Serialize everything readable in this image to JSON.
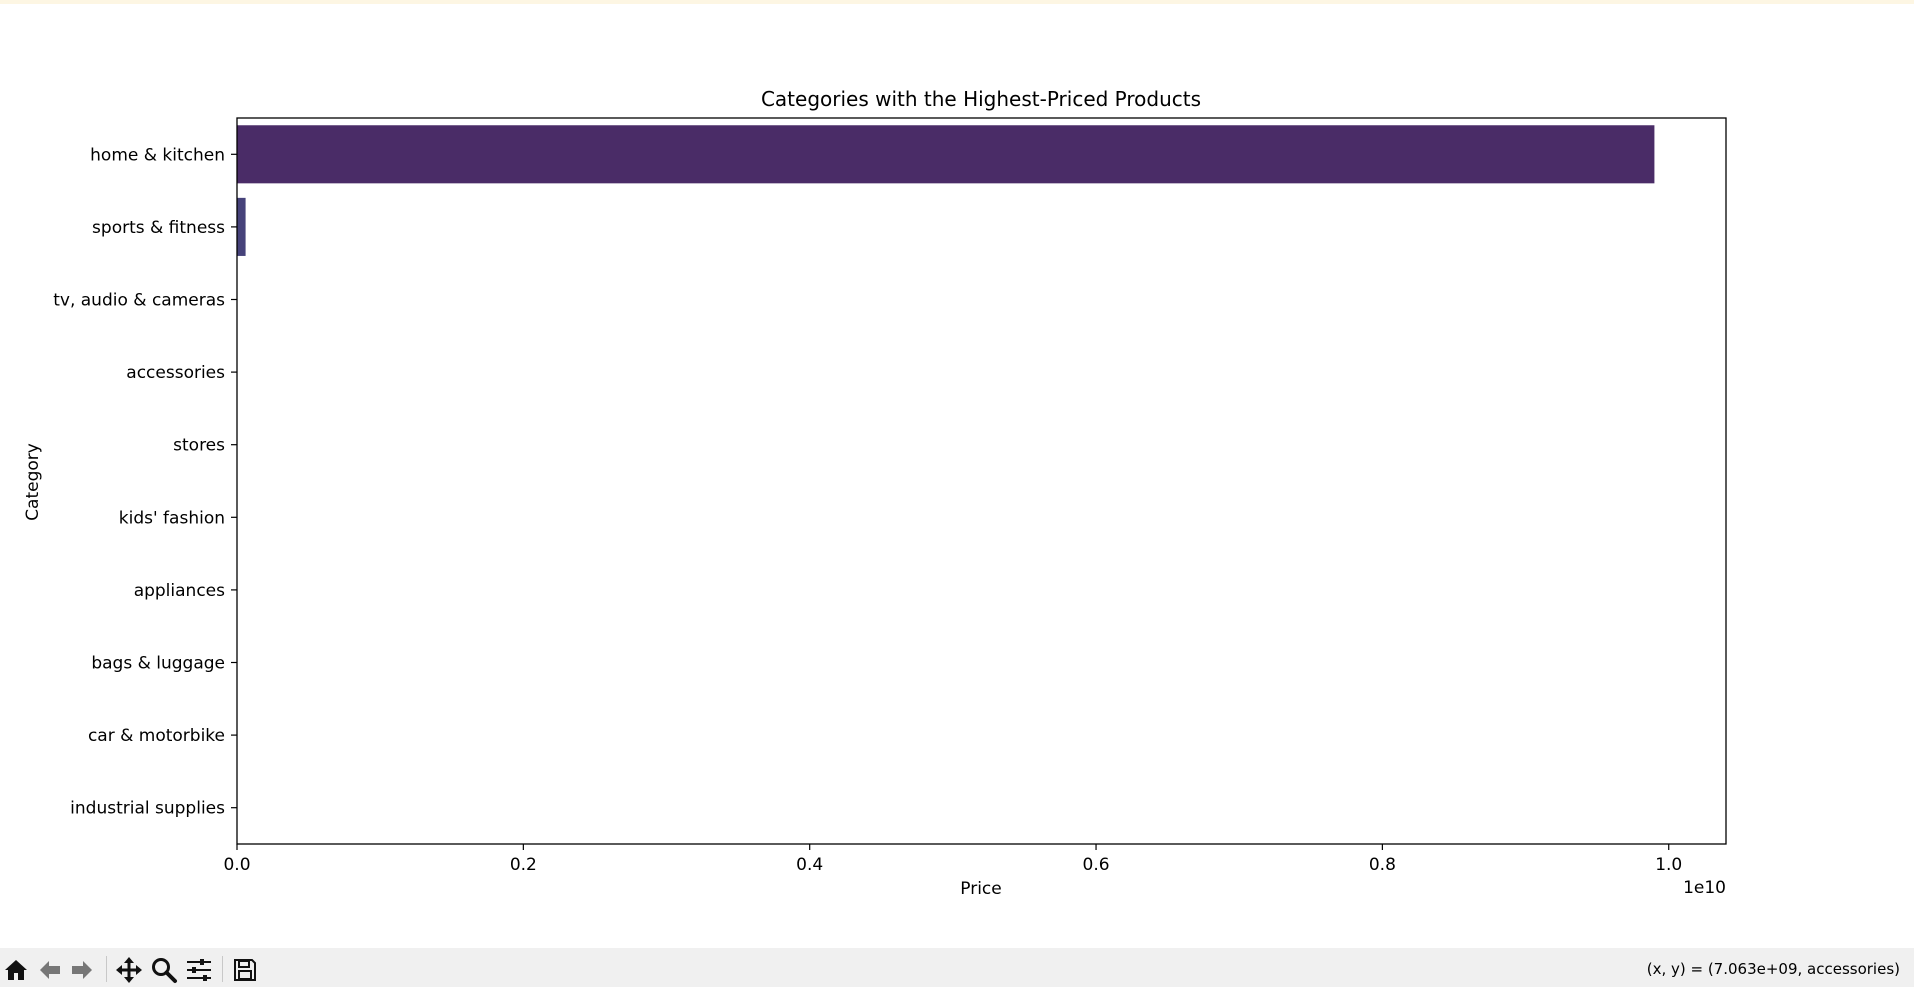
{
  "colors": {
    "bar_primary": "#4a2c67",
    "bar_secondary": "#46427a",
    "axis": "#000000",
    "toolbar_bg": "#f0f0f0"
  },
  "chart_data": {
    "type": "bar",
    "orientation": "horizontal",
    "title": "Categories with the Highest-Priced Products",
    "xlabel": "Price",
    "ylabel": "Category",
    "x_offset_text": "1e10",
    "xlim": [
      0,
      1.04
    ],
    "x_unit_multiplier": 10000000000,
    "xticks": [
      0.0,
      0.2,
      0.4,
      0.6,
      0.8,
      1.0
    ],
    "xtick_labels": [
      "0.0",
      "0.2",
      "0.4",
      "0.6",
      "0.8",
      "1.0"
    ],
    "categories": [
      "home & kitchen",
      "sports & fitness",
      "tv, audio & cameras",
      "accessories",
      "stores",
      "kids' fashion",
      "appliances",
      "bags & luggage",
      "car & motorbike",
      "industrial supplies"
    ],
    "values": [
      0.99,
      0.006,
      0.0,
      0.0,
      0.0,
      0.0,
      0.0,
      0.0,
      0.0,
      0.0
    ],
    "grid": false
  },
  "toolbar": {
    "buttons": [
      {
        "name": "home-icon",
        "label": "Home"
      },
      {
        "name": "back-icon",
        "label": "Back"
      },
      {
        "name": "forward-icon",
        "label": "Forward"
      },
      {
        "name": "pan-icon",
        "label": "Pan"
      },
      {
        "name": "zoom-icon",
        "label": "Zoom"
      },
      {
        "name": "configure-icon",
        "label": "Configure subplots"
      },
      {
        "name": "save-icon",
        "label": "Save"
      }
    ],
    "coord_readout": "(x, y) = (7.063e+09, accessories)"
  }
}
